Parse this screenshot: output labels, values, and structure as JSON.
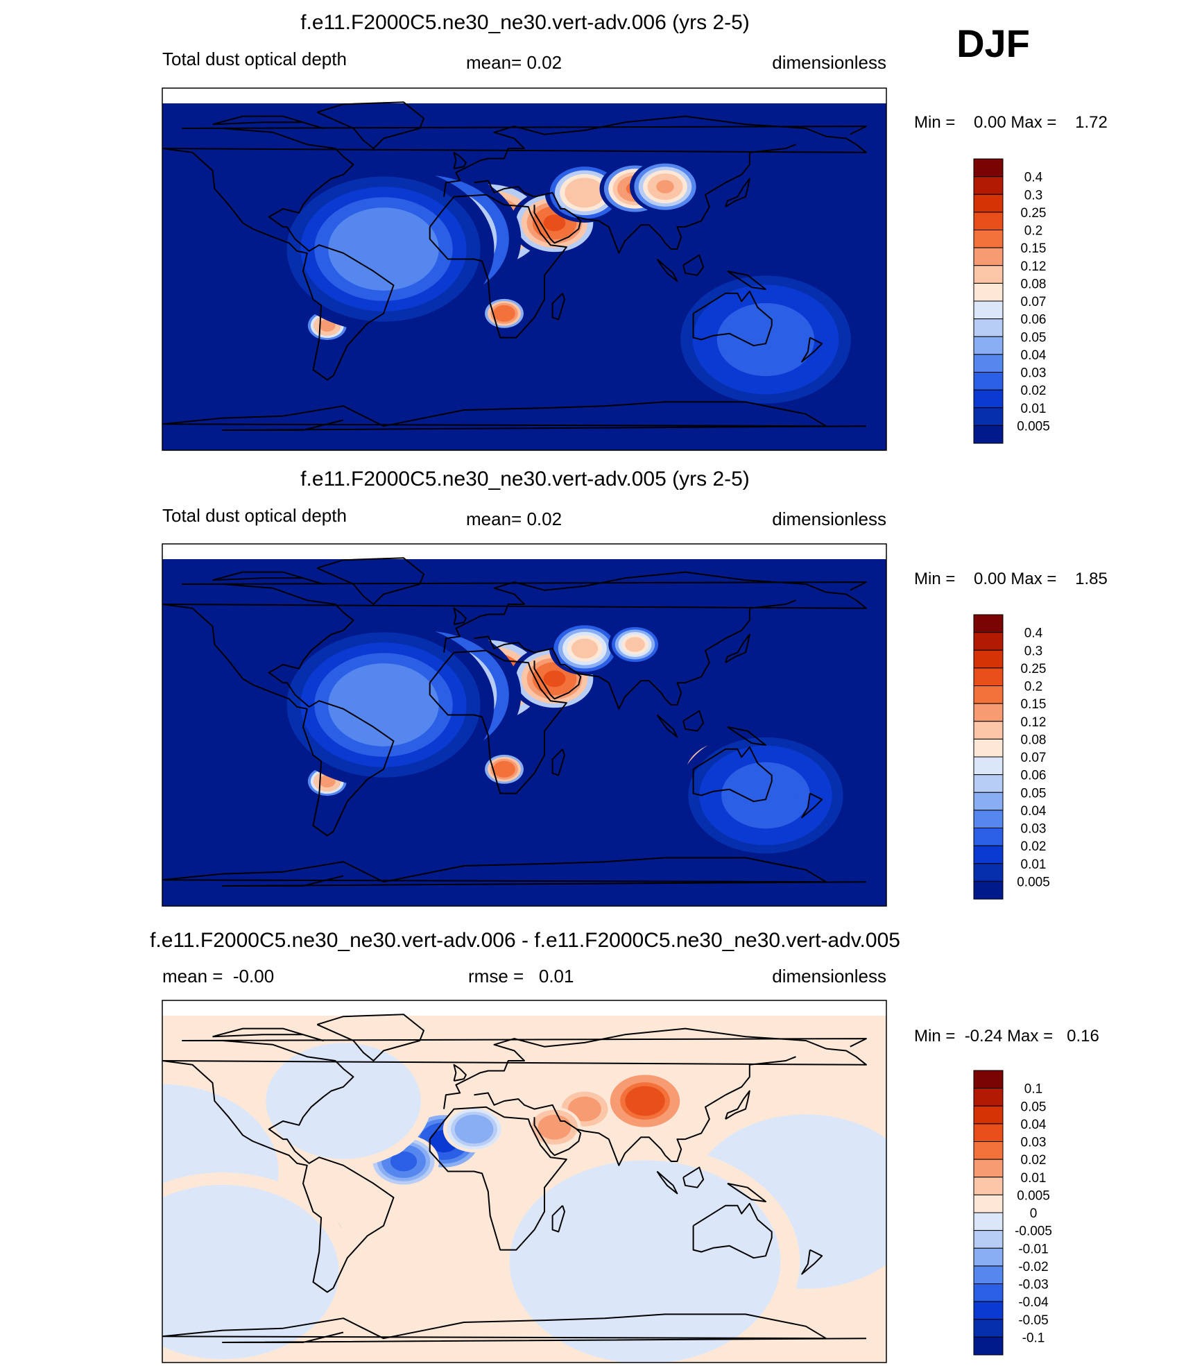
{
  "season_label": "DJF",
  "chart_data": [
    {
      "type": "heatmap",
      "title": "f.e11.F2000C5.ne30_ne30.vert-adv.006 (yrs 2-5)",
      "left_label": "Total dust optical depth",
      "center_label": "mean=   0.02",
      "right_label": "dimensionless",
      "minmax_label": "Min =    0.00 Max =    1.72",
      "grid": false,
      "colorbar": {
        "levels": [
          "0.4",
          "0.3",
          "0.25",
          "0.2",
          "0.15",
          "0.12",
          "0.08",
          "0.07",
          "0.06",
          "0.05",
          "0.04",
          "0.03",
          "0.02",
          "0.01",
          "0.005"
        ],
        "colors": [
          "#7a0403",
          "#b21a02",
          "#d53305",
          "#e94f1a",
          "#f3713a",
          "#f79c72",
          "#fbc6a8",
          "#fde8d8",
          "#dbe7f9",
          "#b7cdf5",
          "#8aaef3",
          "#5687ef",
          "#2a5fe6",
          "#0b3ad2",
          "#062fae",
          "#001a8c"
        ]
      },
      "plumes": [
        {
          "lon": -5,
          "lat": 20,
          "r": 16,
          "v": 0.32
        },
        {
          "lon": 12,
          "lat": 22,
          "r": 14,
          "v": 0.24
        },
        {
          "lon": 45,
          "lat": 23,
          "r": 10,
          "v": 0.22
        },
        {
          "lon": 60,
          "lat": 38,
          "r": 9,
          "v": 0.12
        },
        {
          "lon": 85,
          "lat": 40,
          "r": 8,
          "v": 0.16
        },
        {
          "lon": 100,
          "lat": 41,
          "r": 8,
          "v": 0.13
        },
        {
          "lon": 20,
          "lat": -22,
          "r": 5,
          "v": 0.2
        },
        {
          "lon": 133,
          "lat": -25,
          "r": 12,
          "v": 0.35
        },
        {
          "lon": 150,
          "lat": -35,
          "r": 22,
          "v": 0.03
        },
        {
          "lon": -68,
          "lat": -28,
          "r": 5,
          "v": 0.15
        },
        {
          "lon": -20,
          "lat": 15,
          "r": 22,
          "v": 0.12
        },
        {
          "lon": -40,
          "lat": 10,
          "r": 25,
          "v": 0.04
        }
      ]
    },
    {
      "type": "heatmap",
      "title": "f.e11.F2000C5.ne30_ne30.vert-adv.005 (yrs 2-5)",
      "left_label": "Total dust optical depth",
      "center_label": "mean=   0.02",
      "right_label": "dimensionless",
      "minmax_label": "Min =    0.00 Max =    1.85",
      "grid": false,
      "colorbar": {
        "levels": [
          "0.4",
          "0.3",
          "0.25",
          "0.2",
          "0.15",
          "0.12",
          "0.08",
          "0.07",
          "0.06",
          "0.05",
          "0.04",
          "0.03",
          "0.02",
          "0.01",
          "0.005"
        ],
        "colors": [
          "#7a0403",
          "#b21a02",
          "#d53305",
          "#e94f1a",
          "#f3713a",
          "#f79c72",
          "#fbc6a8",
          "#fde8d8",
          "#dbe7f9",
          "#b7cdf5",
          "#8aaef3",
          "#5687ef",
          "#2a5fe6",
          "#0b3ad2",
          "#062fae",
          "#001a8c"
        ]
      },
      "plumes": [
        {
          "lon": -5,
          "lat": 20,
          "r": 16,
          "v": 0.35
        },
        {
          "lon": 12,
          "lat": 22,
          "r": 14,
          "v": 0.25
        },
        {
          "lon": 45,
          "lat": 23,
          "r": 10,
          "v": 0.22
        },
        {
          "lon": 60,
          "lat": 38,
          "r": 8,
          "v": 0.1
        },
        {
          "lon": 85,
          "lat": 40,
          "r": 6,
          "v": 0.1
        },
        {
          "lon": 20,
          "lat": -22,
          "r": 5,
          "v": 0.2
        },
        {
          "lon": 133,
          "lat": -25,
          "r": 12,
          "v": 0.4
        },
        {
          "lon": 150,
          "lat": -35,
          "r": 20,
          "v": 0.03
        },
        {
          "lon": -68,
          "lat": -28,
          "r": 5,
          "v": 0.15
        },
        {
          "lon": -20,
          "lat": 15,
          "r": 22,
          "v": 0.12
        },
        {
          "lon": -40,
          "lat": 10,
          "r": 25,
          "v": 0.04
        }
      ]
    },
    {
      "type": "heatmap",
      "title": "f.e11.F2000C5.ne30_ne30.vert-adv.006 - f.e11.F2000C5.ne30_ne30.vert-adv.005",
      "left_label": "mean =  -0.00",
      "center_label": "rmse =   0.01",
      "right_label": "dimensionless",
      "minmax_label": "Min =  -0.24 Max =   0.16",
      "grid": false,
      "colorbar": {
        "levels": [
          "0.1",
          "0.05",
          "0.04",
          "0.03",
          "0.02",
          "0.01",
          "0.005",
          "0",
          "-0.005",
          "-0.01",
          "-0.02",
          "-0.03",
          "-0.04",
          "-0.05",
          "-0.1"
        ],
        "colors": [
          "#7a0403",
          "#b21a02",
          "#d53305",
          "#e94f1a",
          "#f3713a",
          "#f79c72",
          "#fbc6a8",
          "#fde8d8",
          "#dbe7f9",
          "#b7cdf5",
          "#8aaef3",
          "#5687ef",
          "#2a5fe6",
          "#0b3ad2",
          "#062fae",
          "#001a8c"
        ]
      },
      "plumes": [
        {
          "lon": 90,
          "lat": 40,
          "r": 9,
          "v": 0.04
        },
        {
          "lon": 60,
          "lat": 36,
          "r": 6,
          "v": 0.02
        },
        {
          "lon": 45,
          "lat": 27,
          "r": 6,
          "v": 0.02
        },
        {
          "lon": -10,
          "lat": 20,
          "r": 9,
          "v": -0.05
        },
        {
          "lon": 5,
          "lat": 26,
          "r": 7,
          "v": -0.02
        },
        {
          "lon": 130,
          "lat": -22,
          "r": 7,
          "v": -0.08
        },
        {
          "lon": 133,
          "lat": -32,
          "r": 5,
          "v": 0.03
        },
        {
          "lon": -30,
          "lat": 10,
          "r": 8,
          "v": -0.04
        },
        {
          "lon": -40,
          "lat": 22,
          "r": 6,
          "v": 0.02
        },
        {
          "lon": -70,
          "lat": -25,
          "r": 5,
          "v": 0.02
        },
        {
          "lon": 170,
          "lat": -10,
          "r": 30,
          "v": -0.004
        },
        {
          "lon": -150,
          "lat": 5,
          "r": 30,
          "v": -0.004
        },
        {
          "lon": 90,
          "lat": -40,
          "r": 35,
          "v": -0.004
        },
        {
          "lon": -120,
          "lat": -45,
          "r": 30,
          "v": -0.004
        },
        {
          "lon": -60,
          "lat": 40,
          "r": 20,
          "v": -0.004
        }
      ]
    }
  ]
}
